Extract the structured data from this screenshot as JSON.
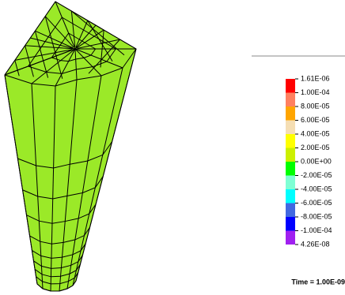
{
  "legend": {
    "labels": [
      "1.61E-06",
      "1.00E-04",
      "8.00E-05",
      "6.00E-05",
      "4.00E-05",
      "2.00E-05",
      "0.00E+00",
      "-2.00E-05",
      "-4.00E-05",
      "-6.00E-05",
      "-8.00E-05",
      "-1.00E-04",
      "4.26E-08"
    ],
    "colors": [
      "#ff0000",
      "#ff8060",
      "#ffa500",
      "#f5deb3",
      "#ffff00",
      "#ccf000",
      "#00ff00",
      "#7fffd4",
      "#00ffff",
      "#4169e1",
      "#0000ff",
      "#a020f0"
    ]
  },
  "time": "Time = 1.00E-09"
}
